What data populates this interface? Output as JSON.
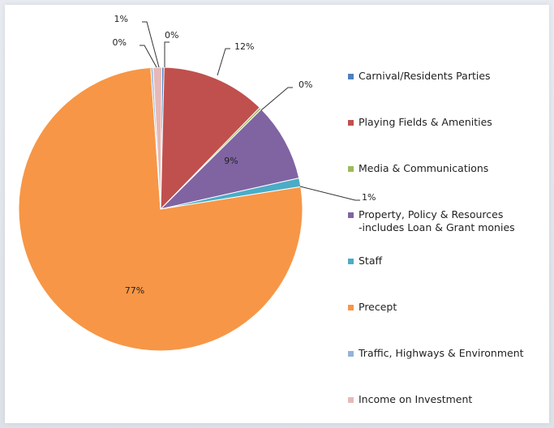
{
  "chart_data": {
    "type": "pie",
    "series": [
      {
        "name": "Carnival/Residents Parties",
        "value": 0,
        "label": "0%",
        "color": "#4f81bd"
      },
      {
        "name": "Playing Fields & Amenities",
        "value": 12,
        "label": "12%",
        "color": "#c0504d"
      },
      {
        "name": "Media & Communications",
        "value": 0,
        "label": "0%",
        "color": "#9bbb59"
      },
      {
        "name": "Property, Policy & Resources\n-includes Loan & Grant monies",
        "value": 9,
        "label": "9%",
        "color": "#8064a2"
      },
      {
        "name": "Staff",
        "value": 1,
        "label": "1%",
        "color": "#4bacc6"
      },
      {
        "name": "Precept",
        "value": 77,
        "label": "77%",
        "color": "#f79646"
      },
      {
        "name": "Traffic, Highways & Environment",
        "value": 0,
        "label": "0%",
        "color": "#95b3d7"
      },
      {
        "name": "Income on Investment",
        "value": 1,
        "label": "1%",
        "color": "#e6b9b8"
      }
    ],
    "legend_position": "right"
  }
}
